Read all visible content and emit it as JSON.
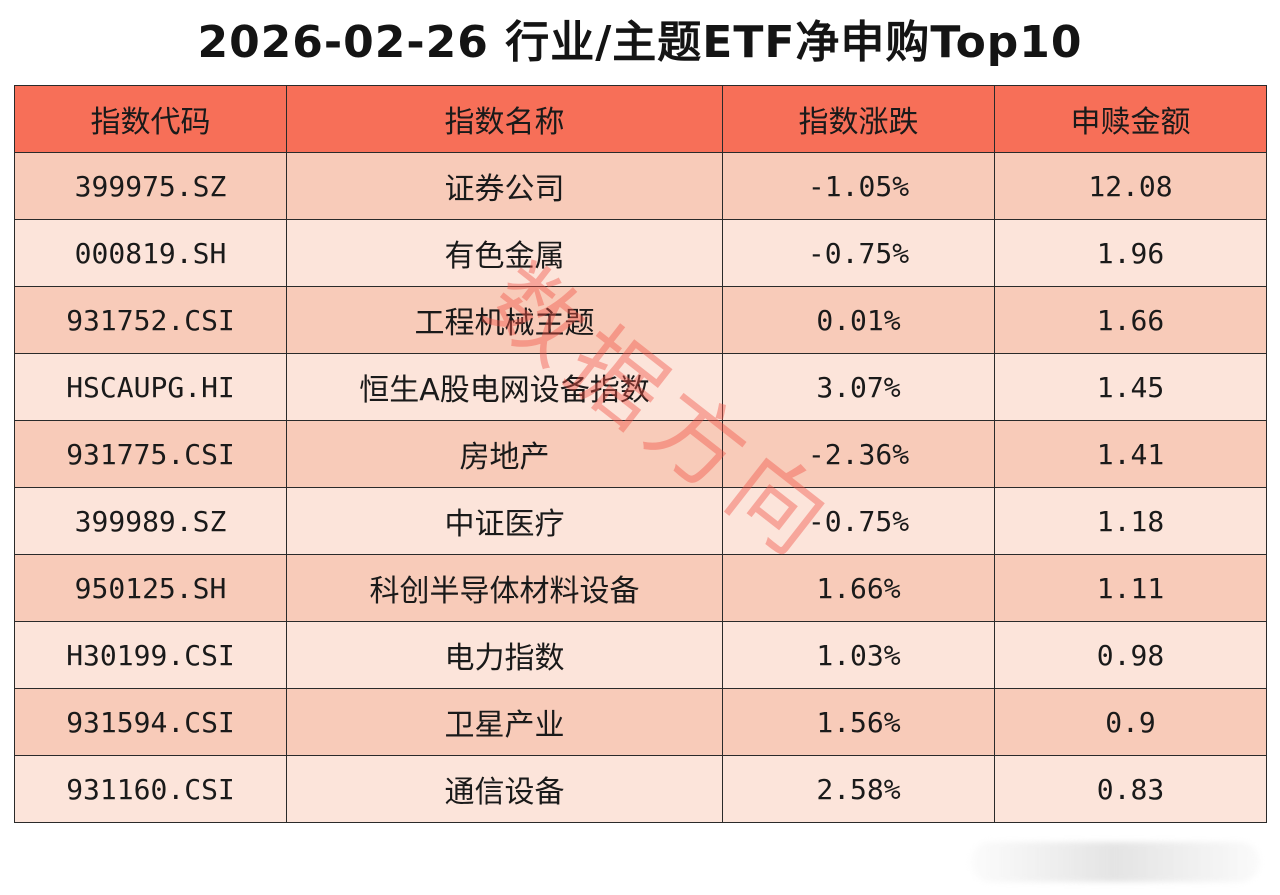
{
  "title": "2026-02-26 行业/主题ETF净申购Top10",
  "watermark": "数据方向",
  "table": {
    "headers": [
      "指数代码",
      "指数名称",
      "指数涨跌",
      "申赎金额"
    ],
    "rows": [
      {
        "code": "399975.SZ",
        "name": "证券公司",
        "change": "-1.05%",
        "amount": "12.08"
      },
      {
        "code": "000819.SH",
        "name": "有色金属",
        "change": "-0.75%",
        "amount": "1.96"
      },
      {
        "code": "931752.CSI",
        "name": "工程机械主题",
        "change": "0.01%",
        "amount": "1.66"
      },
      {
        "code": "HSCAUPG.HI",
        "name": "恒生A股电网设备指数",
        "change": "3.07%",
        "amount": "1.45"
      },
      {
        "code": "931775.CSI",
        "name": "房地产",
        "change": "-2.36%",
        "amount": "1.41"
      },
      {
        "code": "399989.SZ",
        "name": "中证医疗",
        "change": "-0.75%",
        "amount": "1.18"
      },
      {
        "code": "950125.SH",
        "name": "科创半导体材料设备",
        "change": "1.66%",
        "amount": "1.11"
      },
      {
        "code": "H30199.CSI",
        "name": "电力指数",
        "change": "1.03%",
        "amount": "0.98"
      },
      {
        "code": "931594.CSI",
        "name": "卫星产业",
        "change": "1.56%",
        "amount": "0.9"
      },
      {
        "code": "931160.CSI",
        "name": "通信设备",
        "change": "2.58%",
        "amount": "0.83"
      }
    ]
  },
  "colors": {
    "header_bg": "#f76f58",
    "row_odd_bg": "#f8cbb9",
    "row_even_bg": "#fce4da",
    "watermark": "#f05046"
  }
}
